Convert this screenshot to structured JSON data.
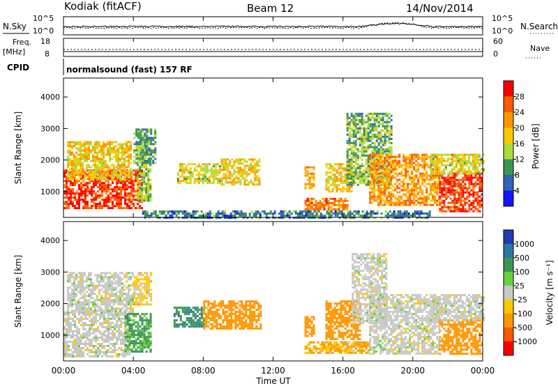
{
  "header": {
    "station": "Kodiak (fitACF)",
    "beam": "Beam 12",
    "date": "14/Nov/2014"
  },
  "status_panels": {
    "nsky_label": "N.Sky",
    "nsearch_label": "N.Search",
    "noise_ticks": [
      "10^5",
      "10^0"
    ],
    "freq_label": "Freq.",
    "freq_unit": "[MHz]",
    "freq_ticks": [
      "18",
      "8"
    ],
    "nave_label": "Nave",
    "nave_ticks": [
      "60",
      "0"
    ],
    "cpid_label": "CPID",
    "cpid_text": "normalsound (fast) 157 RF"
  },
  "axes": {
    "x_ticks": [
      "00:00",
      "04:00",
      "08:00",
      "12:00",
      "16:00",
      "20:00",
      "00:00"
    ],
    "x_label": "Time UT",
    "y_ticks": [
      "4000",
      "3000",
      "2000",
      "1000"
    ],
    "y_label": "Slant Range [km]"
  },
  "power_scale": {
    "label": "Power [dB]",
    "ticks": [
      "28",
      "24",
      "20",
      "16",
      "12",
      "8",
      "4"
    ],
    "colors": [
      "#ff0000",
      "#ff5a00",
      "#ff9600",
      "#ffc800",
      "#aadc3c",
      "#3c9650",
      "#3264b4",
      "#1414ff"
    ]
  },
  "velocity_scale": {
    "label": "Velocity [m s⁻¹]",
    "ticks": [
      "1000",
      "500",
      "100",
      "25",
      "-25",
      "-100",
      "-500",
      "-1000"
    ],
    "colors": [
      "#1e3cb4",
      "#2d78a0",
      "#3c9650",
      "#64d23c",
      "#c8c8c8",
      "#ffc800",
      "#ff9600",
      "#ff5a00",
      "#ff0000"
    ]
  },
  "chart_data": [
    {
      "type": "heatmap",
      "title": "Power",
      "x_range_hours": [
        0,
        24
      ],
      "y_range_km": [
        180,
        4600
      ],
      "ylabel": "Slant Range [km]",
      "xlabel": "Time UT",
      "colorbar_label": "Power [dB]",
      "colorbar_ticks": [
        28,
        24,
        20,
        16,
        12,
        8,
        4
      ],
      "regions": [
        {
          "t0": 0.0,
          "t1": 4.5,
          "r0": 450,
          "r1": 1700,
          "power": 28
        },
        {
          "t0": 0.2,
          "t1": 3.8,
          "r0": 1400,
          "r1": 2600,
          "power": 18
        },
        {
          "t0": 4.2,
          "t1": 5.0,
          "r0": 700,
          "r1": 2600,
          "power": 14
        },
        {
          "t0": 4.0,
          "t1": 5.2,
          "r0": 1900,
          "r1": 3000,
          "power": 10
        },
        {
          "t0": 6.5,
          "t1": 8.9,
          "r0": 1300,
          "r1": 1900,
          "power": 16
        },
        {
          "t0": 9.0,
          "t1": 11.2,
          "r0": 1200,
          "r1": 2050,
          "power": 18
        },
        {
          "t0": 13.8,
          "t1": 14.3,
          "r0": 1100,
          "r1": 1800,
          "power": 20
        },
        {
          "t0": 13.8,
          "t1": 16.2,
          "r0": 450,
          "r1": 800,
          "power": 24
        },
        {
          "t0": 15.0,
          "t1": 16.5,
          "r0": 1000,
          "r1": 1900,
          "power": 18
        },
        {
          "t0": 16.2,
          "t1": 18.8,
          "r0": 1200,
          "r1": 3500,
          "power": 12
        },
        {
          "t0": 17.5,
          "t1": 21.5,
          "r0": 600,
          "r1": 2200,
          "power": 22
        },
        {
          "t0": 21.5,
          "t1": 24.0,
          "r0": 400,
          "r1": 1600,
          "power": 28
        },
        {
          "t0": 21.0,
          "t1": 24.0,
          "r0": 1600,
          "r1": 2200,
          "power": 16
        },
        {
          "t0": 4.5,
          "t1": 21.0,
          "r0": 200,
          "r1": 400,
          "power": 8
        }
      ]
    },
    {
      "type": "heatmap",
      "title": "Velocity",
      "x_range_hours": [
        0,
        24
      ],
      "y_range_km": [
        180,
        4600
      ],
      "ylabel": "Slant Range [km]",
      "xlabel": "Time UT",
      "colorbar_label": "Velocity [m s⁻¹]",
      "colorbar_ticks": [
        1000,
        500,
        100,
        25,
        -25,
        -100,
        -500,
        -1000
      ],
      "regions": [
        {
          "t0": 0.0,
          "t1": 3.8,
          "r0": 300,
          "r1": 1750,
          "velocity": 0
        },
        {
          "t0": 0.2,
          "t1": 4.0,
          "r0": 1700,
          "r1": 3000,
          "velocity": 0
        },
        {
          "t0": 3.5,
          "t1": 5.0,
          "r0": 500,
          "r1": 1700,
          "velocity": 150
        },
        {
          "t0": 4.0,
          "t1": 5.0,
          "r0": 2000,
          "r1": 3000,
          "velocity": -50
        },
        {
          "t0": 6.3,
          "t1": 8.0,
          "r0": 1300,
          "r1": 1900,
          "velocity": 400
        },
        {
          "t0": 8.0,
          "t1": 11.3,
          "r0": 1200,
          "r1": 2100,
          "velocity": -300
        },
        {
          "t0": 13.8,
          "t1": 14.3,
          "r0": 1000,
          "r1": 1600,
          "velocity": -300
        },
        {
          "t0": 13.8,
          "t1": 17.5,
          "r0": 450,
          "r1": 800,
          "velocity": -100
        },
        {
          "t0": 15.0,
          "t1": 17.0,
          "r0": 900,
          "r1": 2100,
          "velocity": -300
        },
        {
          "t0": 16.5,
          "t1": 18.5,
          "r0": 1400,
          "r1": 3600,
          "velocity": 0
        },
        {
          "t0": 17.5,
          "t1": 21.5,
          "r0": 400,
          "r1": 2300,
          "velocity": 0
        },
        {
          "t0": 21.5,
          "t1": 24.0,
          "r0": 400,
          "r1": 1500,
          "velocity": -300
        },
        {
          "t0": 21.0,
          "t1": 24.0,
          "r0": 1500,
          "r1": 2300,
          "velocity": 0
        }
      ]
    }
  ]
}
